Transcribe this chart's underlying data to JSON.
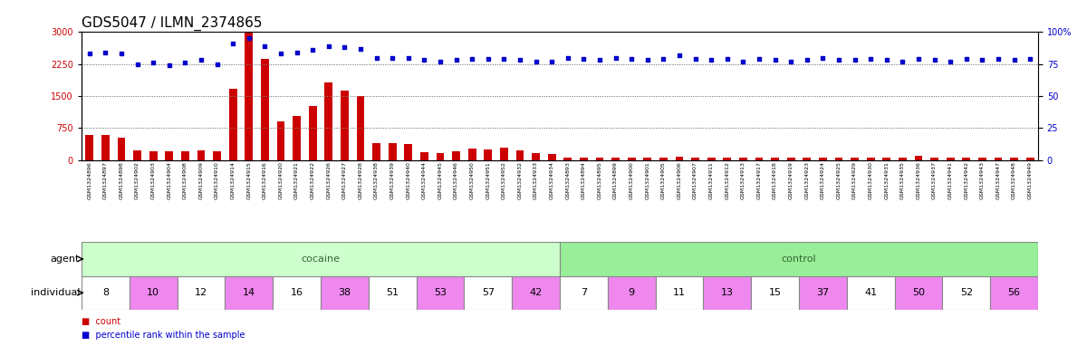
{
  "title": "GDS5047 / ILMN_2374865",
  "samples": [
    "GSM1324896",
    "GSM1324897",
    "GSM1324898",
    "GSM1324902",
    "GSM1324903",
    "GSM1324904",
    "GSM1324908",
    "GSM1324909",
    "GSM1324910",
    "GSM1324914",
    "GSM1324915",
    "GSM1324916",
    "GSM1324920",
    "GSM1324921",
    "GSM1324922",
    "GSM1324926",
    "GSM1324927",
    "GSM1324928",
    "GSM1324938",
    "GSM1324939",
    "GSM1324940",
    "GSM1324944",
    "GSM1324945",
    "GSM1324946",
    "GSM1324950",
    "GSM1324951",
    "GSM1324952",
    "GSM1324932",
    "GSM1324933",
    "GSM1324934",
    "GSM1324893",
    "GSM1324894",
    "GSM1324895",
    "GSM1324899",
    "GSM1324900",
    "GSM1324901",
    "GSM1324905",
    "GSM1324906",
    "GSM1324907",
    "GSM1324911",
    "GSM1324912",
    "GSM1324913",
    "GSM1324917",
    "GSM1324918",
    "GSM1324919",
    "GSM1324923",
    "GSM1324924",
    "GSM1324925",
    "GSM1324929",
    "GSM1324930",
    "GSM1324931",
    "GSM1324935",
    "GSM1324936",
    "GSM1324937",
    "GSM1324941",
    "GSM1324942",
    "GSM1324943",
    "GSM1324947",
    "GSM1324948",
    "GSM1324949"
  ],
  "counts": [
    580,
    580,
    520,
    230,
    200,
    200,
    200,
    230,
    200,
    1680,
    3000,
    2370,
    900,
    1030,
    1260,
    1820,
    1620,
    1510,
    390,
    410,
    380,
    190,
    170,
    210,
    270,
    260,
    290,
    230,
    160,
    150,
    50,
    50,
    55,
    50,
    55,
    50,
    65,
    80,
    50,
    50,
    50,
    50,
    55,
    50,
    50,
    50,
    50,
    50,
    50,
    50,
    50,
    50,
    100,
    50,
    50,
    50,
    50,
    50,
    50,
    70
  ],
  "percentiles": [
    83,
    84,
    83,
    75,
    76,
    74,
    76,
    78,
    75,
    91,
    95,
    89,
    83,
    84,
    86,
    89,
    88,
    87,
    80,
    80,
    80,
    78,
    77,
    78,
    79,
    79,
    79,
    78,
    77,
    77,
    80,
    79,
    78,
    80,
    79,
    78,
    79,
    82,
    79,
    78,
    79,
    77,
    79,
    78,
    77,
    78,
    80,
    78,
    78,
    79,
    78,
    77,
    79,
    78,
    77,
    79,
    78,
    79,
    78,
    79
  ],
  "agent": [
    "cocaine",
    "cocaine",
    "cocaine",
    "cocaine",
    "cocaine",
    "cocaine",
    "cocaine",
    "cocaine",
    "cocaine",
    "cocaine",
    "cocaine",
    "cocaine",
    "cocaine",
    "cocaine",
    "cocaine",
    "cocaine",
    "cocaine",
    "cocaine",
    "cocaine",
    "cocaine",
    "cocaine",
    "cocaine",
    "cocaine",
    "cocaine",
    "cocaine",
    "cocaine",
    "cocaine",
    "cocaine",
    "cocaine",
    "cocaine",
    "control",
    "control",
    "control",
    "control",
    "control",
    "control",
    "control",
    "control",
    "control",
    "control",
    "control",
    "control",
    "control",
    "control",
    "control",
    "control",
    "control",
    "control",
    "control",
    "control",
    "control",
    "control",
    "control",
    "control",
    "control",
    "control",
    "control",
    "control",
    "control",
    "control"
  ],
  "individuals": [
    "8",
    "8",
    "8",
    "10",
    "10",
    "10",
    "12",
    "12",
    "12",
    "14",
    "14",
    "14",
    "16",
    "16",
    "16",
    "38",
    "38",
    "38",
    "51",
    "51",
    "51",
    "53",
    "53",
    "53",
    "57",
    "57",
    "57",
    "42",
    "42",
    "42",
    "7",
    "7",
    "7",
    "9",
    "9",
    "9",
    "11",
    "11",
    "11",
    "13",
    "13",
    "13",
    "15",
    "15",
    "15",
    "37",
    "37",
    "37",
    "41",
    "41",
    "41",
    "50",
    "50",
    "50",
    "52",
    "52",
    "52",
    "56",
    "56",
    "56"
  ],
  "ylim_left": [
    0,
    3000
  ],
  "ylim_right": [
    0,
    100
  ],
  "yticks_left": [
    0,
    750,
    1500,
    2250,
    3000
  ],
  "yticks_right": [
    0,
    25,
    50,
    75,
    100
  ],
  "bar_color": "#cc0000",
  "dot_color": "#0000cc",
  "cocaine_color": "#ccffcc",
  "control_color": "#99ee99",
  "individual_color_white": "#ffffff",
  "individual_color_pink": "#ee88ee",
  "agent_label_color": "#336633",
  "title_fontsize": 11,
  "tick_fontsize": 7,
  "label_fontsize": 8,
  "background_color": "#ffffff",
  "grid_color": "#888888"
}
